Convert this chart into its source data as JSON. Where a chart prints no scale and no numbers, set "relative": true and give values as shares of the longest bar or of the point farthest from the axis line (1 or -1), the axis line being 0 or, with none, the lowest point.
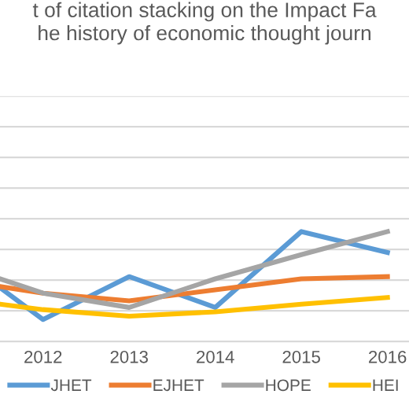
{
  "chart_data": {
    "type": "line",
    "title": "t of citation stacking on the Impact Fa\nhe history of economic thought journ",
    "x": [
      2011.5,
      2012,
      2013,
      2014,
      2015,
      2016
    ],
    "xlim": [
      2011.5,
      2016.25
    ],
    "xticks": [
      2012,
      2013,
      2014,
      2015,
      2016
    ],
    "relative": true,
    "grid": "y",
    "legend": "bottom",
    "marker": "none",
    "line_style": "solid",
    "series": [
      {
        "name": "JHET",
        "color": "#5b9bd5",
        "values": [
          0.49,
          0.2,
          0.59,
          0.31,
          1,
          0.81
        ]
      },
      {
        "name": "EJHET",
        "color": "#ed7d31",
        "values": [
          0.5,
          0.44,
          0.37,
          0.47,
          0.57,
          0.59
        ]
      },
      {
        "name": "HOPE",
        "color": "#a5a5a5",
        "values": [
          0.57,
          0.44,
          0.31,
          0.57,
          0.79,
          1
        ]
      },
      {
        "name": "HEI",
        "color": "#ffc000",
        "values": [
          0.34,
          0.29,
          0.23,
          0.27,
          0.34,
          0.4
        ]
      }
    ]
  }
}
